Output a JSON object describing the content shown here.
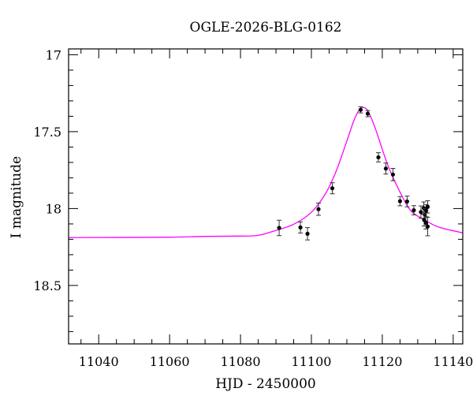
{
  "chart_data": {
    "type": "scatter",
    "title": "OGLE-2026-BLG-0162",
    "xlabel": "HJD - 2450000",
    "ylabel": "I magnitude",
    "xlim": [
      11031.5,
      11142.7
    ],
    "ylim": [
      16.962,
      18.88
    ],
    "y_inverted": true,
    "grid": false,
    "x_ticks": [
      11040,
      11060,
      11080,
      11100,
      11120,
      11140
    ],
    "x_tick_labels": [
      "11040",
      "11060",
      "11080",
      "11100",
      "11120",
      "11140"
    ],
    "y_ticks": [
      17,
      17.5,
      18,
      18.5
    ],
    "y_tick_labels": [
      "17",
      "17.5",
      "18",
      "18.5"
    ],
    "colors": {
      "points": "#000000",
      "model": "#ff00ff"
    },
    "series": [
      {
        "type": "scatter-errorbar",
        "points": [
          {
            "x": 11090.9,
            "y": 18.126,
            "err": 0.05
          },
          {
            "x": 11096.9,
            "y": 18.123,
            "err": 0.036
          },
          {
            "x": 11098.9,
            "y": 18.164,
            "err": 0.04
          },
          {
            "x": 11102.0,
            "y": 18.004,
            "err": 0.04
          },
          {
            "x": 11105.9,
            "y": 17.868,
            "err": 0.036
          },
          {
            "x": 11113.9,
            "y": 17.358,
            "err": 0.02
          },
          {
            "x": 11115.9,
            "y": 17.383,
            "err": 0.02
          },
          {
            "x": 11118.9,
            "y": 17.667,
            "err": 0.03
          },
          {
            "x": 11121.0,
            "y": 17.74,
            "err": 0.036
          },
          {
            "x": 11123.0,
            "y": 17.779,
            "err": 0.04
          },
          {
            "x": 11125.0,
            "y": 17.952,
            "err": 0.03
          },
          {
            "x": 11127.0,
            "y": 17.954,
            "err": 0.035
          },
          {
            "x": 11128.9,
            "y": 18.011,
            "err": 0.03
          },
          {
            "x": 11130.9,
            "y": 18.023,
            "err": 0.04
          },
          {
            "x": 11131.7,
            "y": 17.997,
            "err": 0.04
          },
          {
            "x": 11132.0,
            "y": 18.04,
            "err": 0.04
          },
          {
            "x": 11132.4,
            "y": 18.014,
            "err": 0.04
          },
          {
            "x": 11132.8,
            "y": 17.989,
            "err": 0.04
          },
          {
            "x": 11131.8,
            "y": 18.074,
            "err": 0.04
          },
          {
            "x": 11132.8,
            "y": 18.117,
            "err": 0.06
          },
          {
            "x": 11132.3,
            "y": 18.093,
            "err": 0.04
          }
        ]
      },
      {
        "type": "line",
        "x": [
          11031.5,
          11045,
          11060,
          11070,
          11080,
          11085,
          11090,
          11095,
          11100,
          11104,
          11107,
          11110,
          11112,
          11113.5,
          11114.6,
          11116,
          11118,
          11120,
          11122,
          11125,
          11128,
          11132,
          11136,
          11142.7
        ],
        "y": [
          18.189,
          18.188,
          18.186,
          18.181,
          18.179,
          18.174,
          18.142,
          18.102,
          18.024,
          17.902,
          17.756,
          17.561,
          17.427,
          17.358,
          17.342,
          17.368,
          17.477,
          17.615,
          17.744,
          17.893,
          18.013,
          18.075,
          18.121,
          18.158
        ]
      }
    ]
  }
}
